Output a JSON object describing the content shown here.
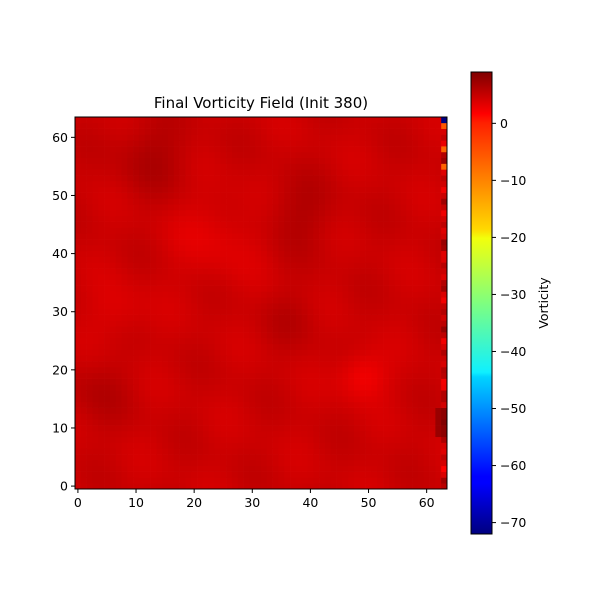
{
  "chart_data": {
    "type": "heatmap",
    "title": "Final Vorticity Field (Init 380)",
    "xlabel": "",
    "ylabel": "",
    "grid_size": [
      64,
      64
    ],
    "xlim": [
      -0.5,
      63.5
    ],
    "ylim": [
      -0.5,
      63.5
    ],
    "x_ticks": [
      0,
      10,
      20,
      30,
      40,
      50,
      60
    ],
    "y_ticks": [
      0,
      10,
      20,
      30,
      40,
      50,
      60
    ],
    "colormap": "jet",
    "grid": false,
    "colorbar": {
      "label": "Vorticity",
      "vmin": -72,
      "vmax": 9,
      "ticks": [
        0,
        -10,
        -20,
        -30,
        -40,
        -50,
        -60,
        -70
      ]
    },
    "field_description_features": {
      "background_value": 3,
      "strong_negative_spot": {
        "x": 63,
        "y": 63,
        "value": -72
      },
      "max_positive_region": {
        "x": 63,
        "y": 11,
        "value": 9
      }
    }
  }
}
